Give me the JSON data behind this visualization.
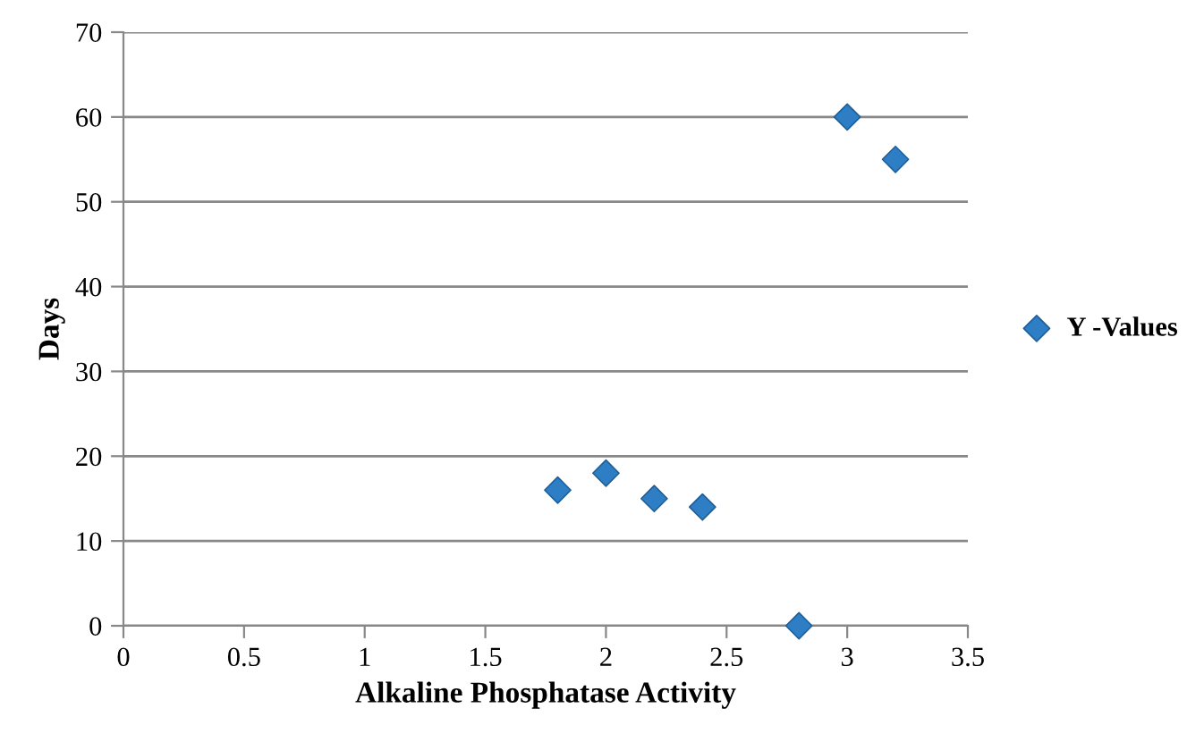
{
  "chart_data": {
    "type": "scatter",
    "xlabel": "Alkaline Phosphatase Activity",
    "ylabel": "Days",
    "series": [
      {
        "name": "Y -Values",
        "color": "#2e7ec6",
        "x": [
          1.8,
          2,
          2.2,
          2.4,
          2.8,
          3,
          3.2
        ],
        "values": [
          16,
          18,
          15,
          14,
          0,
          60,
          55
        ]
      }
    ],
    "xlim": [
      0,
      3.5
    ],
    "xticks": [
      0,
      0.5,
      1,
      1.5,
      2,
      2.5,
      3,
      3.5
    ],
    "ylim": [
      0,
      70
    ],
    "yticks": [
      0,
      10,
      20,
      30,
      40,
      50,
      60,
      70
    ],
    "grid": "y",
    "legend": "right",
    "marker": "diamond"
  }
}
